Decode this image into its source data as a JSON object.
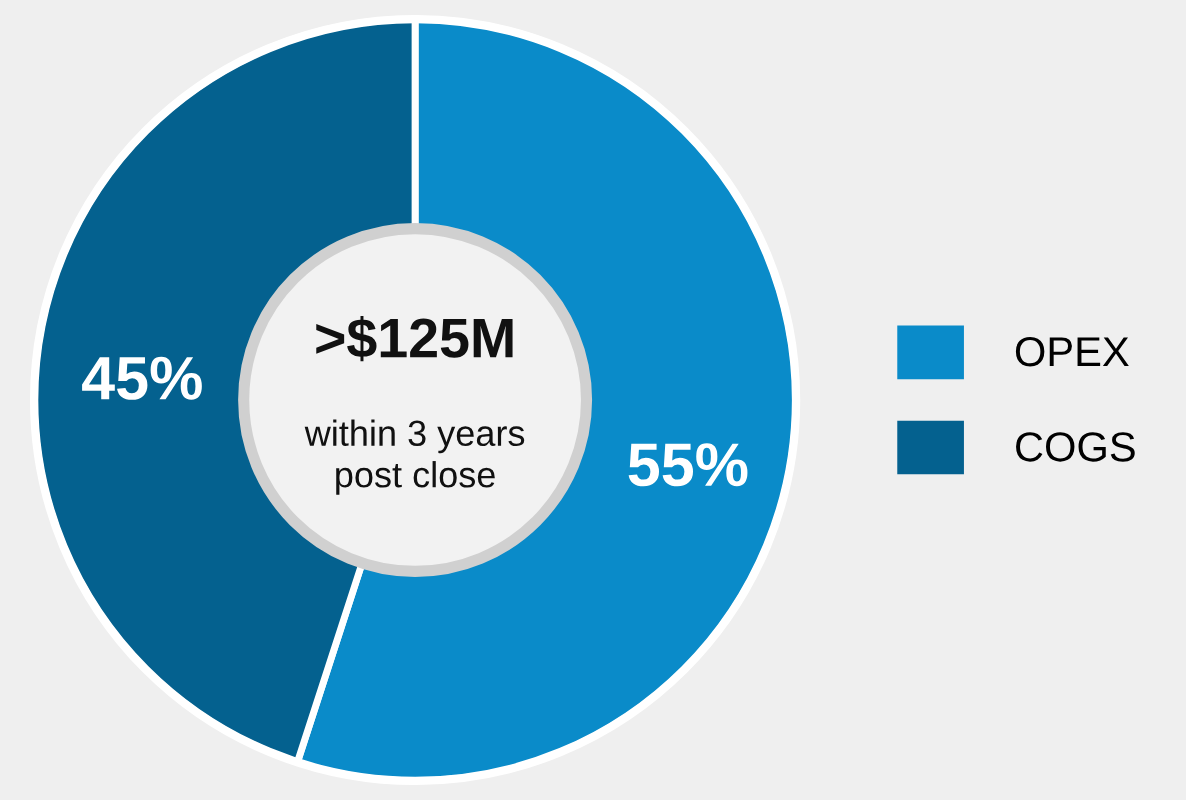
{
  "chart_data": {
    "type": "donut",
    "categories": [
      "OPEX",
      "COGS"
    ],
    "values": [
      55,
      45
    ],
    "colors": [
      "#0a8bc9",
      "#04618f"
    ],
    "value_labels": [
      "55%",
      "45%"
    ],
    "legend": "right",
    "annotations": [
      ">$125M",
      "within 3 years\npost close"
    ]
  }
}
